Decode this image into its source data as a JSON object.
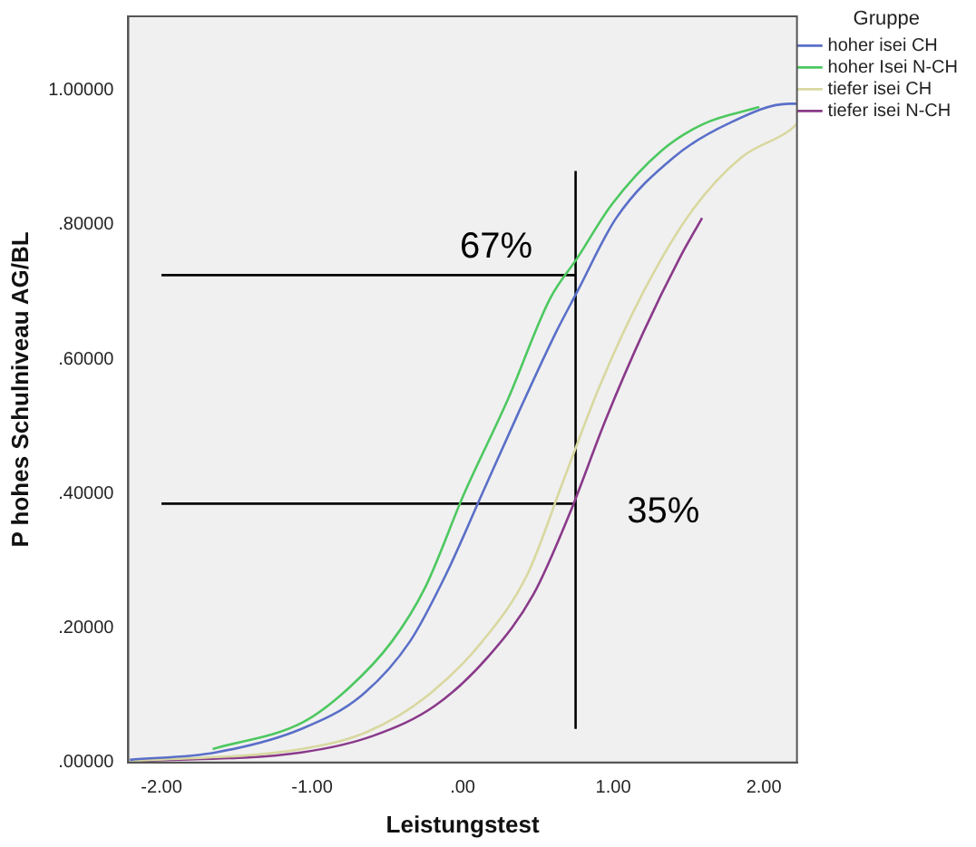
{
  "chart_data": {
    "type": "line",
    "xlabel": "Leistungstest",
    "ylabel": "P hohes Schulniveau AG/BL",
    "legend_title": "Gruppe",
    "legend": "top right",
    "xlim": [
      -2.22,
      2.22
    ],
    "ylim": [
      0,
      1.11
    ],
    "xticks": [
      {
        "value": -2,
        "label": "-2.00"
      },
      {
        "value": -1,
        "label": "-1.00"
      },
      {
        "value": 0,
        "label": ".00"
      },
      {
        "value": 1,
        "label": "1.00"
      },
      {
        "value": 2,
        "label": "2.00"
      }
    ],
    "yticks": [
      {
        "value": 0,
        "label": ".00000"
      },
      {
        "value": 0.2,
        "label": ".20000"
      },
      {
        "value": 0.4,
        "label": ".40000"
      },
      {
        "value": 0.6,
        "label": ".60000"
      },
      {
        "value": 0.8,
        "label": ".80000"
      },
      {
        "value": 1,
        "label": "1.00000"
      }
    ],
    "grid": false,
    "marker": "none",
    "line_style": "solid",
    "series": [
      {
        "name": "hoher isei CH",
        "color": "#5a6fc8",
        "x": [
          -2.21,
          -1.64,
          -1.07,
          -0.67,
          -0.35,
          -0.11,
          0.13,
          0.37,
          0.62,
          0.76,
          1.02,
          1.4,
          1.76,
          2.17,
          2.22
        ],
        "values": [
          0.004,
          0.015,
          0.05,
          0.1,
          0.18,
          0.28,
          0.4,
          0.52,
          0.64,
          0.7,
          0.81,
          0.9,
          0.95,
          0.98,
          0.98
        ]
      },
      {
        "name": "hoher Isei N-CH",
        "color": "#4dc860",
        "x": [
          -1.66,
          -1.06,
          -0.76,
          -0.47,
          -0.25,
          0.01,
          0.3,
          0.58,
          0.76,
          0.99,
          1.32,
          1.6,
          1.97
        ],
        "values": [
          0.02,
          0.06,
          0.11,
          0.18,
          0.26,
          0.4,
          0.54,
          0.69,
          0.75,
          0.83,
          0.91,
          0.95,
          0.975
        ]
      },
      {
        "name": "tiefer isei CH",
        "color": "#d8d8a0",
        "x": [
          -2.2,
          -1.07,
          -0.63,
          -0.23,
          0.13,
          0.43,
          0.67,
          0.91,
          1.2,
          1.52,
          1.85,
          2.17,
          2.22
        ],
        "values": [
          0.002,
          0.02,
          0.046,
          0.1,
          0.18,
          0.28,
          0.42,
          0.56,
          0.7,
          0.82,
          0.9,
          0.94,
          0.95
        ]
      },
      {
        "name": "tiefer isei N-CH",
        "color": "#8a3a8a",
        "x": [
          -2.2,
          -1.07,
          -0.59,
          -0.18,
          0.18,
          0.47,
          0.71,
          0.95,
          1.2,
          1.44,
          1.59
        ],
        "values": [
          0.002,
          0.015,
          0.04,
          0.085,
          0.16,
          0.25,
          0.37,
          0.51,
          0.64,
          0.75,
          0.81
        ]
      },
      {
        "color": "#000000",
        "x": [
          -2,
          0.75
        ],
        "values": [
          0.725,
          0.725
        ]
      },
      {
        "color": "#000000",
        "x": [
          -2,
          0.75
        ],
        "values": [
          0.385,
          0.385
        ]
      },
      {
        "color": "#000000",
        "x": [
          0.75,
          0.75
        ],
        "values": [
          0.05,
          0.88
        ]
      }
    ],
    "annotations": [
      "67%",
      "35%"
    ]
  }
}
